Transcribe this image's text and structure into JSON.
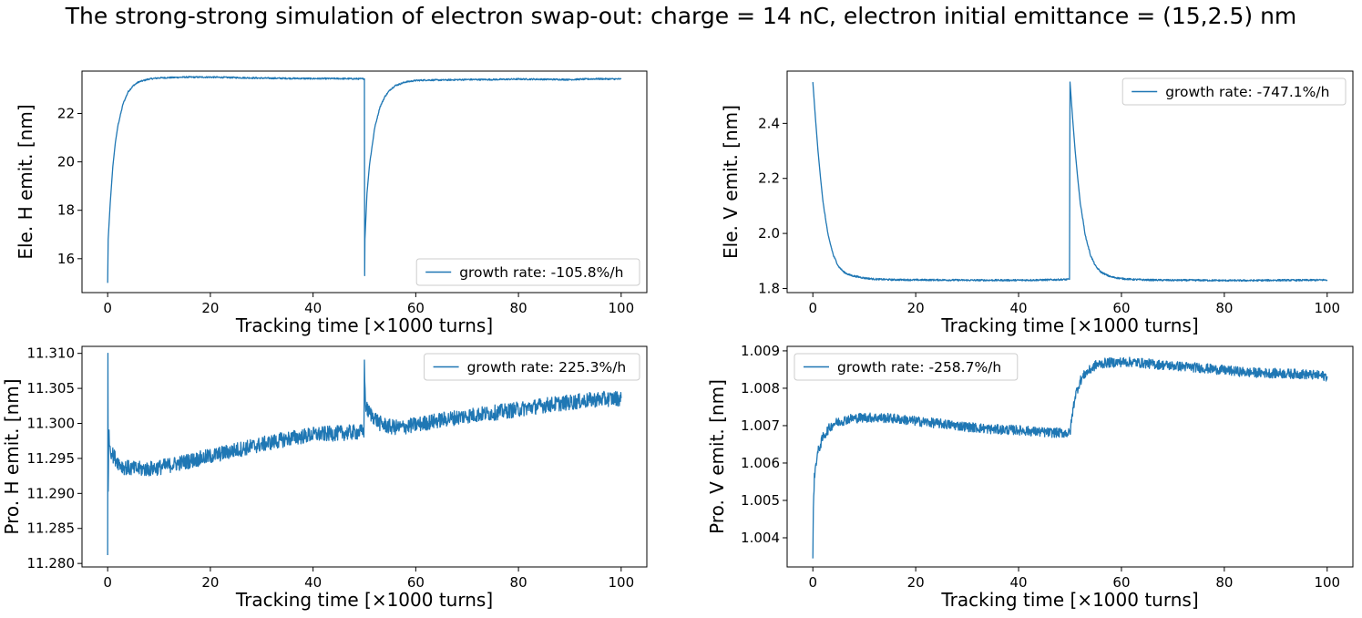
{
  "title": "The strong-strong simulation of electron swap-out: charge = 14 nC, electron initial emittance = (15,2.5) nm",
  "colors": {
    "line": "#1f77b4",
    "axes": "#000000",
    "legend_border": "#cccccc"
  },
  "chart_data": [
    {
      "type": "line",
      "xlabel": "Tracking time [×1000 turns]",
      "ylabel": "Ele. H emit. [nm]",
      "xlim": [
        -5,
        105
      ],
      "ylim": [
        14.6,
        23.75
      ],
      "xticks": [
        0,
        20,
        40,
        60,
        80,
        100
      ],
      "xtick_labels": [
        "0",
        "20",
        "40",
        "60",
        "80",
        "100"
      ],
      "yticks": [
        16,
        18,
        20,
        22
      ],
      "ytick_labels": [
        "16",
        "18",
        "20",
        "22"
      ],
      "legend_position": "lower-right",
      "series": [
        {
          "name": "growth rate: -105.8%/h",
          "x": [
            0,
            0.1,
            0.5,
            1,
            1.5,
            2,
            3,
            4,
            5,
            6,
            8,
            10,
            12,
            15,
            20,
            25,
            30,
            35,
            40,
            45,
            49.9,
            50,
            50.05,
            50.1,
            50.5,
            51,
            52,
            53,
            54,
            55,
            56,
            58,
            60,
            62,
            65,
            70,
            75,
            80,
            85,
            90,
            95,
            100
          ],
          "y": [
            15.0,
            16.8,
            18.3,
            19.8,
            20.8,
            21.5,
            22.4,
            22.9,
            23.15,
            23.3,
            23.42,
            23.47,
            23.48,
            23.5,
            23.5,
            23.48,
            23.46,
            23.45,
            23.44,
            23.44,
            23.43,
            23.43,
            15.3,
            16.8,
            18.7,
            19.9,
            21.4,
            22.25,
            22.7,
            22.98,
            23.15,
            23.3,
            23.36,
            23.38,
            23.38,
            23.4,
            23.4,
            23.42,
            23.41,
            23.4,
            23.43,
            23.42
          ],
          "noise": 0.03
        }
      ]
    },
    {
      "type": "line",
      "xlabel": "Tracking time [×1000 turns]",
      "ylabel": "Ele. V emit. [nm]",
      "xlim": [
        -5,
        105
      ],
      "ylim": [
        1.785,
        2.59
      ],
      "xticks": [
        0,
        20,
        40,
        60,
        80,
        100
      ],
      "xtick_labels": [
        "0",
        "20",
        "40",
        "60",
        "80",
        "100"
      ],
      "yticks": [
        1.8,
        2.0,
        2.2,
        2.4
      ],
      "ytick_labels": [
        "1.8",
        "2.0",
        "2.2",
        "2.4"
      ],
      "legend_position": "upper-right",
      "series": [
        {
          "name": "growth rate: -747.1%/h",
          "x": [
            0,
            0.5,
            1,
            1.5,
            2,
            3,
            4,
            5,
            6,
            7,
            8,
            10,
            12,
            15,
            20,
            25,
            30,
            35,
            40,
            45,
            49.9,
            50,
            50.5,
            51,
            51.5,
            52,
            53,
            54,
            55,
            56,
            57,
            58,
            60,
            62,
            65,
            70,
            75,
            80,
            85,
            90,
            95,
            100
          ],
          "y": [
            2.55,
            2.42,
            2.3,
            2.2,
            2.11,
            1.99,
            1.92,
            1.88,
            1.86,
            1.85,
            1.845,
            1.838,
            1.834,
            1.832,
            1.831,
            1.831,
            1.83,
            1.83,
            1.83,
            1.831,
            1.833,
            2.55,
            2.42,
            2.3,
            2.2,
            2.11,
            1.99,
            1.92,
            1.88,
            1.86,
            1.85,
            1.842,
            1.836,
            1.833,
            1.831,
            1.83,
            1.83,
            1.829,
            1.829,
            1.83,
            1.83,
            1.831
          ],
          "noise": 0.003
        }
      ]
    },
    {
      "type": "line",
      "xlabel": "Tracking time [×1000 turns]",
      "ylabel": "Pro. H emit. [nm]",
      "xlim": [
        -5,
        105
      ],
      "ylim": [
        11.2795,
        11.311
      ],
      "xticks": [
        0,
        20,
        40,
        60,
        80,
        100
      ],
      "xtick_labels": [
        "0",
        "20",
        "40",
        "60",
        "80",
        "100"
      ],
      "yticks": [
        11.28,
        11.285,
        11.29,
        11.295,
        11.3,
        11.305,
        11.31
      ],
      "ytick_labels": [
        "11.280",
        "11.285",
        "11.290",
        "11.295",
        "11.300",
        "11.305",
        "11.310"
      ],
      "legend_position": "upper-right",
      "series": [
        {
          "name": "growth rate: 225.3%/h",
          "x": [
            0,
            0.05,
            0.1,
            0.2,
            0.4,
            0.7,
            1,
            2,
            3,
            5,
            8,
            10,
            15,
            20,
            25,
            30,
            35,
            40,
            45,
            49.9,
            50,
            50.2,
            50.5,
            51,
            52,
            53,
            55,
            57,
            60,
            65,
            70,
            75,
            80,
            85,
            90,
            95,
            100
          ],
          "y": [
            11.2812,
            11.31,
            11.29,
            11.2985,
            11.297,
            11.296,
            11.2955,
            11.2945,
            11.2938,
            11.2935,
            11.2935,
            11.2937,
            11.2945,
            11.2953,
            11.2962,
            11.297,
            11.2978,
            11.2984,
            11.2986,
            11.2988,
            11.3081,
            11.3028,
            11.302,
            11.3015,
            11.3008,
            11.3,
            11.2995,
            11.2994,
            11.2998,
            11.3005,
            11.3011,
            11.3015,
            11.302,
            11.3026,
            11.303,
            11.3034,
            11.3036
          ],
          "noise": 0.0011
        }
      ]
    },
    {
      "type": "line",
      "xlabel": "Tracking time [×1000 turns]",
      "ylabel": "Pro. V emit. [nm]",
      "xlim": [
        -5,
        105
      ],
      "ylim": [
        1.00322,
        1.00912
      ],
      "xticks": [
        0,
        20,
        40,
        60,
        80,
        100
      ],
      "xtick_labels": [
        "0",
        "20",
        "40",
        "60",
        "80",
        "100"
      ],
      "yticks": [
        1.004,
        1.005,
        1.006,
        1.007,
        1.008,
        1.009
      ],
      "ytick_labels": [
        "1.004",
        "1.005",
        "1.006",
        "1.007",
        "1.008",
        "1.009"
      ],
      "legend_position": "upper-left",
      "series": [
        {
          "name": "growth rate: -258.7%/h",
          "x": [
            0,
            0.1,
            0.3,
            0.6,
            1,
            2,
            3,
            4,
            5,
            7,
            10,
            15,
            20,
            25,
            30,
            35,
            40,
            45,
            49.9,
            50,
            50.5,
            51,
            52,
            53,
            54,
            55,
            57,
            60,
            62,
            65,
            70,
            75,
            80,
            85,
            90,
            95,
            100
          ],
          "y": [
            1.00345,
            1.0049,
            1.0056,
            1.006,
            1.0063,
            1.0067,
            1.0069,
            1.00705,
            1.0071,
            1.00718,
            1.00722,
            1.0072,
            1.00712,
            1.00705,
            1.00697,
            1.0069,
            1.00688,
            1.00682,
            1.0068,
            1.0068,
            1.00735,
            1.0078,
            1.0082,
            1.0084,
            1.0085,
            1.00862,
            1.00868,
            1.0087,
            1.0087,
            1.00866,
            1.0086,
            1.00855,
            1.00848,
            1.00842,
            1.0084,
            1.00838,
            1.00832
          ],
          "noise": 0.00013
        }
      ]
    }
  ]
}
